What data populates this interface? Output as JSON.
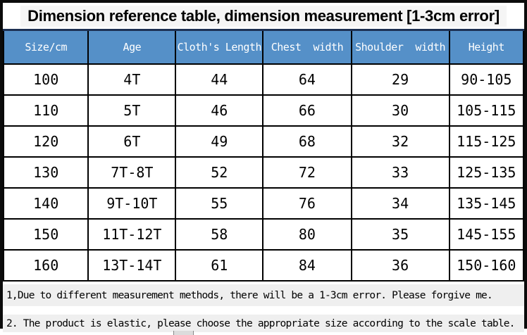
{
  "title": "Dimension reference table, dimension measurement [1-3cm error]",
  "table": {
    "columns": [
      "Size/cm",
      "Age",
      "Cloth's Length",
      "Chest  width",
      "Shoulder  width",
      "Height"
    ],
    "rows": [
      [
        "100",
        "4T",
        "44",
        "64",
        "29",
        "90-105"
      ],
      [
        "110",
        "5T",
        "46",
        "66",
        "30",
        "105-115"
      ],
      [
        "120",
        "6T",
        "49",
        "68",
        "32",
        "115-125"
      ],
      [
        "130",
        "7T-8T",
        "52",
        "72",
        "33",
        "125-135"
      ],
      [
        "140",
        "9T-10T",
        "55",
        "76",
        "34",
        "135-145"
      ],
      [
        "150",
        "11T-12T",
        "58",
        "80",
        "35",
        "145-155"
      ],
      [
        "160",
        "13T-14T",
        "61",
        "84",
        "36",
        "150-160"
      ]
    ]
  },
  "notes": [
    "1,Due to different measurement methods, there will be a 1-3cm error. Please forgive me.",
    "2. The product is elastic, please choose the appropriate size according to the scale table."
  ],
  "colors": {
    "header_bg": "#5590C8",
    "header_text": "#FFFFFF",
    "table_top_border": "#1D3053",
    "cell_border": "#000000",
    "note_bg": "#EFEFEF",
    "frame": "#0B0B0B",
    "title_highlight": "#F5F5F5"
  }
}
